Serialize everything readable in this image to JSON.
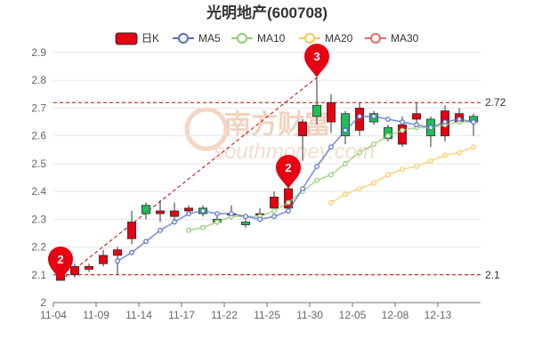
{
  "chart_data": {
    "type": "candlestick",
    "title": "光明地产(600708)",
    "legend": [
      "日K",
      "MA5",
      "MA10",
      "MA20",
      "MA30"
    ],
    "legend_position": "top",
    "colors": {
      "up": "#e60012",
      "down": "#1fbc5a",
      "ma5": "#5470c6",
      "ma10": "#91cc75",
      "ma20": "#fac858",
      "ma30": "#ee6666",
      "refline": "#cc0000",
      "pin": "#e60012"
    },
    "ylim": [
      2.0,
      2.9
    ],
    "yticks": [
      "2",
      "2.1",
      "2.2",
      "2.3",
      "2.4",
      "2.5",
      "2.6",
      "2.7",
      "2.8",
      "2.9"
    ],
    "x_tick_labels": [
      "11-04",
      "11-09",
      "11-14",
      "11-17",
      "11-22",
      "11-25",
      "11-30",
      "12-05",
      "12-08",
      "12-13"
    ],
    "grid": true,
    "dates": [
      "11-04",
      "11-07",
      "11-08",
      "11-09",
      "11-10",
      "11-11",
      "11-14",
      "11-15",
      "11-16",
      "11-17",
      "11-18",
      "11-21",
      "11-22",
      "11-23",
      "11-24",
      "11-25",
      "11-28",
      "11-29",
      "11-30",
      "12-01",
      "12-02",
      "12-05",
      "12-06",
      "12-07",
      "12-08",
      "12-09",
      "12-12",
      "12-13",
      "12-14",
      "12-15"
    ],
    "candles": [
      {
        "o": 2.08,
        "c": 2.13,
        "h": 2.14,
        "l": 2.08
      },
      {
        "o": 2.1,
        "c": 2.13,
        "h": 2.14,
        "l": 2.09
      },
      {
        "o": 2.12,
        "c": 2.13,
        "h": 2.14,
        "l": 2.11
      },
      {
        "o": 2.14,
        "c": 2.17,
        "h": 2.19,
        "l": 2.13
      },
      {
        "o": 2.17,
        "c": 2.19,
        "h": 2.2,
        "l": 2.1
      },
      {
        "o": 2.23,
        "c": 2.29,
        "h": 2.33,
        "l": 2.21
      },
      {
        "o": 2.35,
        "c": 2.32,
        "h": 2.36,
        "l": 2.3
      },
      {
        "o": 2.32,
        "c": 2.33,
        "h": 2.37,
        "l": 2.29
      },
      {
        "o": 2.31,
        "c": 2.33,
        "h": 2.36,
        "l": 2.29
      },
      {
        "o": 2.33,
        "c": 2.34,
        "h": 2.35,
        "l": 2.32
      },
      {
        "o": 2.34,
        "c": 2.32,
        "h": 2.35,
        "l": 2.31
      },
      {
        "o": 2.3,
        "c": 2.29,
        "h": 2.32,
        "l": 2.28
      },
      {
        "o": 2.32,
        "c": 2.32,
        "h": 2.35,
        "l": 2.3
      },
      {
        "o": 2.29,
        "c": 2.28,
        "h": 2.3,
        "l": 2.27
      },
      {
        "o": 2.32,
        "c": 2.32,
        "h": 2.34,
        "l": 2.29
      },
      {
        "o": 2.34,
        "c": 2.38,
        "h": 2.4,
        "l": 2.32
      },
      {
        "o": 2.34,
        "c": 2.41,
        "h": 2.43,
        "l": 2.32
      },
      {
        "o": 2.6,
        "c": 2.65,
        "h": 2.66,
        "l": 2.51
      },
      {
        "o": 2.71,
        "c": 2.67,
        "h": 2.81,
        "l": 2.64
      },
      {
        "o": 2.65,
        "c": 2.72,
        "h": 2.75,
        "l": 2.61
      },
      {
        "o": 2.68,
        "c": 2.6,
        "h": 2.69,
        "l": 2.57
      },
      {
        "o": 2.62,
        "c": 2.7,
        "h": 2.72,
        "l": 2.6
      },
      {
        "o": 2.68,
        "c": 2.65,
        "h": 2.69,
        "l": 2.64
      },
      {
        "o": 2.63,
        "c": 2.59,
        "h": 2.64,
        "l": 2.58
      },
      {
        "o": 2.57,
        "c": 2.64,
        "h": 2.67,
        "l": 2.56
      },
      {
        "o": 2.66,
        "c": 2.68,
        "h": 2.72,
        "l": 2.63
      },
      {
        "o": 2.66,
        "c": 2.6,
        "h": 2.67,
        "l": 2.56
      },
      {
        "o": 2.6,
        "c": 2.69,
        "h": 2.71,
        "l": 2.58
      },
      {
        "o": 2.65,
        "c": 2.68,
        "h": 2.7,
        "l": 2.64
      },
      {
        "o": 2.67,
        "c": 2.65,
        "h": 2.68,
        "l": 2.6
      }
    ],
    "ma5": [
      null,
      null,
      null,
      null,
      2.15,
      2.18,
      2.22,
      2.26,
      2.29,
      2.32,
      2.33,
      2.32,
      2.32,
      2.31,
      2.3,
      2.31,
      2.33,
      2.41,
      2.49,
      2.56,
      2.62,
      2.67,
      2.67,
      2.66,
      2.65,
      2.64,
      2.63,
      2.65,
      2.66,
      2.65
    ],
    "ma10": [
      null,
      null,
      null,
      null,
      null,
      null,
      null,
      null,
      null,
      2.26,
      2.27,
      2.29,
      2.31,
      2.31,
      2.31,
      2.33,
      2.36,
      2.4,
      2.44,
      2.46,
      2.5,
      2.54,
      2.57,
      2.6,
      2.62,
      2.63,
      2.63,
      2.64,
      2.65,
      2.65
    ],
    "ma20": [
      null,
      null,
      null,
      null,
      null,
      null,
      null,
      null,
      null,
      null,
      null,
      null,
      null,
      null,
      null,
      null,
      null,
      null,
      null,
      2.36,
      2.39,
      2.41,
      2.43,
      2.46,
      2.48,
      2.49,
      2.51,
      2.53,
      2.54,
      2.56
    ],
    "ma30": [],
    "ref_lines": [
      {
        "value": 2.72,
        "label": "2.72"
      },
      {
        "value": 2.1,
        "label": "2.1"
      }
    ],
    "pins": [
      {
        "index": 0,
        "value": 2.08,
        "label": "2"
      },
      {
        "index": 16,
        "value": 2.41,
        "label": "2"
      },
      {
        "index": 18,
        "value": 2.81,
        "label": "3"
      }
    ],
    "trend_line": {
      "from_index": 0,
      "from_value": 2.08,
      "to_index": 18,
      "to_value": 2.81
    },
    "watermark": {
      "name": "南方财富",
      "url": "southmoney.com"
    }
  }
}
